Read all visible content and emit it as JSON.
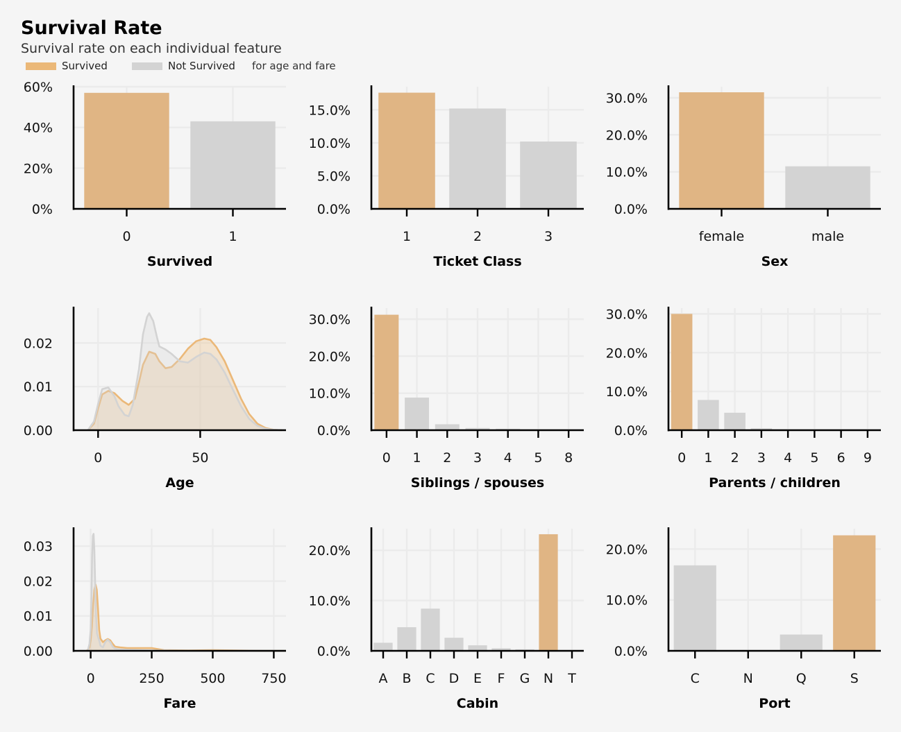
{
  "header": {
    "title": "Survival Rate",
    "subtitle": "Survival rate on each individual feature",
    "legend": [
      {
        "label": "Survived",
        "color": "#ebb878"
      },
      {
        "label": "Not Survived",
        "color": "#d3d3d3"
      }
    ],
    "legend_note": "for age and fare"
  },
  "colors": {
    "survived": "#e0b584",
    "not_survived": "#d3d3d3",
    "kde_survived": "#ebb878",
    "kde_not": "#d3d3d3",
    "background": "#f5f5f5",
    "grid": "#ebebeb"
  },
  "chart_data": [
    {
      "id": "survived",
      "type": "bar",
      "xlabel": "Survived",
      "ylabel": "",
      "categories": [
        "0",
        "1"
      ],
      "values": [
        0.57,
        0.43
      ],
      "highlight": [
        true,
        false
      ],
      "ylim": [
        0,
        0.6
      ],
      "yticks": [
        0,
        0.2,
        0.4,
        0.6
      ],
      "ytick_labels": [
        "0%",
        "20%",
        "40%",
        "60%"
      ],
      "grid": true
    },
    {
      "id": "pclass",
      "type": "bar",
      "xlabel": "Ticket Class",
      "ylabel": "",
      "categories": [
        "1",
        "2",
        "3"
      ],
      "values": [
        0.176,
        0.152,
        0.102
      ],
      "highlight": [
        true,
        false,
        false
      ],
      "ylim": [
        0,
        0.185
      ],
      "yticks": [
        0,
        0.05,
        0.1,
        0.15
      ],
      "ytick_labels": [
        "0.0%",
        "5.0%",
        "10.0%",
        "15.0%"
      ],
      "grid": true
    },
    {
      "id": "sex",
      "type": "bar",
      "xlabel": "Sex",
      "ylabel": "",
      "categories": [
        "female",
        "male"
      ],
      "values": [
        0.315,
        0.115
      ],
      "highlight": [
        true,
        false
      ],
      "ylim": [
        0,
        0.33
      ],
      "yticks": [
        0,
        0.1,
        0.2,
        0.3
      ],
      "ytick_labels": [
        "0.0%",
        "10.0%",
        "20.0%",
        "30.0%"
      ],
      "grid": true
    },
    {
      "id": "age",
      "type": "area",
      "xlabel": "Age",
      "ylabel": "",
      "xlim": [
        -12,
        92
      ],
      "ylim": [
        0,
        0.028
      ],
      "xticks": [
        0,
        50
      ],
      "xtick_labels": [
        "0",
        "50"
      ],
      "yticks": [
        0,
        0.01,
        0.02
      ],
      "ytick_labels": [
        "0.00",
        "0.01",
        "0.02"
      ],
      "grid": true,
      "series": [
        {
          "name": "Survived",
          "x": [
            -5,
            -2,
            0,
            2,
            5,
            8,
            12,
            15,
            18,
            20,
            22,
            25,
            28,
            30,
            33,
            36,
            40,
            44,
            48,
            52,
            55,
            58,
            62,
            66,
            70,
            74,
            78,
            82,
            86,
            90
          ],
          "values": [
            0,
            0.0015,
            0.005,
            0.0082,
            0.009,
            0.0085,
            0.0067,
            0.0058,
            0.0072,
            0.011,
            0.015,
            0.018,
            0.0175,
            0.0158,
            0.0142,
            0.0145,
            0.0163,
            0.0187,
            0.0204,
            0.021,
            0.0207,
            0.019,
            0.0158,
            0.0115,
            0.0072,
            0.0037,
            0.0015,
            0.0005,
            0.0001,
            0
          ]
        },
        {
          "name": "Not Survived",
          "x": [
            -5,
            -2,
            0,
            2,
            5,
            8,
            10,
            13,
            15,
            17,
            20,
            22,
            24,
            25,
            27,
            29,
            30,
            33,
            36,
            40,
            44,
            48,
            52,
            55,
            58,
            62,
            66,
            70,
            74,
            78,
            82,
            86,
            90
          ],
          "values": [
            0,
            0.002,
            0.006,
            0.0094,
            0.0098,
            0.0078,
            0.0055,
            0.0035,
            0.0032,
            0.0058,
            0.014,
            0.022,
            0.026,
            0.0268,
            0.025,
            0.021,
            0.0192,
            0.0185,
            0.0175,
            0.0158,
            0.0155,
            0.0168,
            0.0178,
            0.0175,
            0.0162,
            0.0132,
            0.0093,
            0.0055,
            0.0026,
            0.001,
            0.0003,
            0.0001,
            0
          ]
        }
      ]
    },
    {
      "id": "sibsp",
      "type": "bar",
      "xlabel": "Siblings / spouses",
      "ylabel": "",
      "categories": [
        "0",
        "1",
        "2",
        "3",
        "4",
        "5",
        "8"
      ],
      "values": [
        0.312,
        0.088,
        0.016,
        0.006,
        0.004,
        0.001,
        0.001
      ],
      "highlight": [
        true,
        false,
        false,
        false,
        false,
        false,
        false
      ],
      "ylim": [
        0,
        0.33
      ],
      "yticks": [
        0,
        0.1,
        0.2,
        0.3
      ],
      "ytick_labels": [
        "0.0%",
        "10.0%",
        "20.0%",
        "30.0%"
      ],
      "grid": true
    },
    {
      "id": "parch",
      "type": "bar",
      "xlabel": "Parents / children",
      "ylabel": "",
      "categories": [
        "0",
        "1",
        "2",
        "3",
        "4",
        "5",
        "6",
        "9"
      ],
      "values": [
        0.3,
        0.078,
        0.045,
        0.005,
        0.001,
        0.001,
        0.001,
        0.001
      ],
      "highlight": [
        true,
        false,
        false,
        false,
        false,
        false,
        false,
        false
      ],
      "ylim": [
        0,
        0.315
      ],
      "yticks": [
        0,
        0.1,
        0.2,
        0.3
      ],
      "ytick_labels": [
        "0.0%",
        "10.0%",
        "20.0%",
        "30.0%"
      ],
      "grid": true
    },
    {
      "id": "fare",
      "type": "area",
      "xlabel": "Fare",
      "ylabel": "",
      "xlim": [
        -70,
        800
      ],
      "ylim": [
        0,
        0.035
      ],
      "xticks": [
        0,
        250,
        500,
        750
      ],
      "xtick_labels": [
        "0",
        "250",
        "500",
        "750"
      ],
      "yticks": [
        0,
        0.01,
        0.02,
        0.03
      ],
      "ytick_labels": [
        "0.00",
        "0.01",
        "0.02",
        "0.03"
      ],
      "grid": true,
      "series": [
        {
          "name": "Survived",
          "x": [
            -15,
            -5,
            0,
            5,
            10,
            15,
            20,
            25,
            30,
            35,
            40,
            50,
            60,
            70,
            80,
            90,
            100,
            120,
            150,
            200,
            250,
            300,
            400,
            500,
            600,
            700,
            800
          ],
          "values": [
            0,
            0.001,
            0.003,
            0.007,
            0.013,
            0.0175,
            0.019,
            0.0175,
            0.012,
            0.006,
            0.0035,
            0.0025,
            0.003,
            0.0034,
            0.003,
            0.002,
            0.0012,
            0.001,
            0.0008,
            0.0008,
            0.0008,
            0.0002,
            0.0001,
            0.0002,
            0.0001,
            0,
            0
          ]
        },
        {
          "name": "Not Survived",
          "x": [
            -12,
            -5,
            0,
            3,
            6,
            9,
            12,
            15,
            18,
            22,
            26,
            30,
            35,
            40,
            50,
            60,
            70,
            80,
            90,
            100,
            120,
            150,
            200,
            250,
            300,
            400,
            500,
            600,
            700,
            800
          ],
          "values": [
            0,
            0.002,
            0.006,
            0.015,
            0.027,
            0.033,
            0.0335,
            0.029,
            0.02,
            0.01,
            0.005,
            0.004,
            0.003,
            0.0015,
            0.001,
            0.0025,
            0.0032,
            0.0025,
            0.0012,
            0.0006,
            0.0004,
            0.0003,
            0.0002,
            0.0001,
            0.0001,
            0,
            0,
            0,
            0,
            0
          ]
        }
      ]
    },
    {
      "id": "cabin",
      "type": "bar",
      "xlabel": "Cabin",
      "ylabel": "",
      "categories": [
        "A",
        "B",
        "C",
        "D",
        "E",
        "F",
        "G",
        "N",
        "T"
      ],
      "values": [
        0.016,
        0.047,
        0.084,
        0.026,
        0.011,
        0.005,
        0.003,
        0.232,
        0.0005
      ],
      "highlight": [
        false,
        false,
        false,
        false,
        false,
        false,
        false,
        true,
        false
      ],
      "ylim": [
        0,
        0.243
      ],
      "yticks": [
        0,
        0.1,
        0.2
      ],
      "ytick_labels": [
        "0.0%",
        "10.0%",
        "20.0%"
      ],
      "grid": true
    },
    {
      "id": "port",
      "type": "bar",
      "xlabel": "Port",
      "ylabel": "",
      "categories": [
        "C",
        "N",
        "Q",
        "S"
      ],
      "values": [
        0.168,
        0,
        0.032,
        0.227
      ],
      "highlight": [
        false,
        false,
        false,
        true
      ],
      "ylim": [
        0,
        0.24
      ],
      "yticks": [
        0,
        0.1,
        0.2
      ],
      "ytick_labels": [
        "0.0%",
        "10.0%",
        "20.0%"
      ],
      "grid": true
    }
  ]
}
